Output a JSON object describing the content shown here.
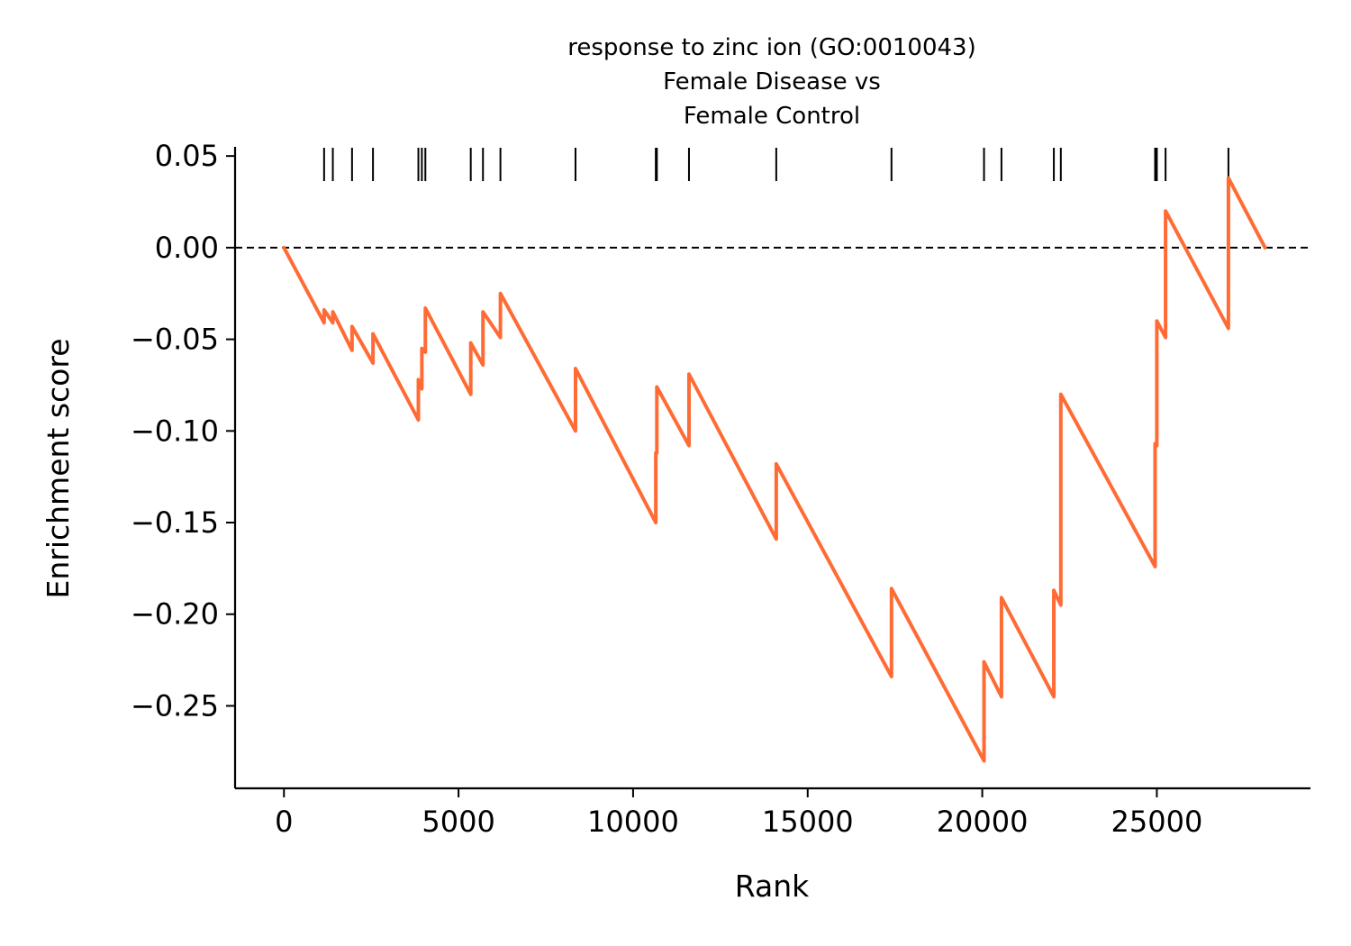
{
  "chart_data": {
    "type": "line",
    "title": "response to zinc ion (GO:0010043)",
    "subtitle_lines": [
      "Female Disease vs",
      "Female Control"
    ],
    "xlabel": "Rank",
    "ylabel": "Enrichment score",
    "xlim": [
      -1400,
      29400
    ],
    "ylim": [
      -0.295,
      0.055
    ],
    "x_ticks": [
      0,
      5000,
      10000,
      15000,
      20000,
      25000
    ],
    "x_tick_labels": [
      "0",
      "5000",
      "10000",
      "15000",
      "20000",
      "25000"
    ],
    "y_ticks": [
      0.05,
      0.0,
      -0.05,
      -0.1,
      -0.15,
      -0.2,
      -0.25
    ],
    "y_tick_labels": [
      "0.05",
      "0.00",
      "−0.05",
      "−0.10",
      "−0.15",
      "−0.20",
      "−0.25"
    ],
    "reference_line": {
      "y": 0.0,
      "style": "dashed",
      "color": "#000000"
    },
    "grid": false,
    "colors": {
      "line": "#ff6b35",
      "hits": "#000000"
    },
    "hit_ranks": [
      1150,
      1400,
      1950,
      2550,
      3850,
      3950,
      4050,
      5350,
      5700,
      6200,
      8350,
      10650,
      10680,
      11600,
      14100,
      17400,
      20050,
      20550,
      22050,
      22250,
      24950,
      25000,
      25250,
      27050
    ],
    "series": [
      {
        "values": [
          [
            0,
            0.0
          ],
          [
            1150,
            -0.041
          ],
          [
            1150,
            -0.034
          ],
          [
            1400,
            -0.041
          ],
          [
            1400,
            -0.035
          ],
          [
            1950,
            -0.056
          ],
          [
            1950,
            -0.043
          ],
          [
            2550,
            -0.063
          ],
          [
            2550,
            -0.047
          ],
          [
            3850,
            -0.094
          ],
          [
            3850,
            -0.072
          ],
          [
            3950,
            -0.077
          ],
          [
            3950,
            -0.055
          ],
          [
            4050,
            -0.057
          ],
          [
            4050,
            -0.033
          ],
          [
            5350,
            -0.08
          ],
          [
            5350,
            -0.052
          ],
          [
            5700,
            -0.064
          ],
          [
            5700,
            -0.035
          ],
          [
            6200,
            -0.049
          ],
          [
            6200,
            -0.025
          ],
          [
            8350,
            -0.1
          ],
          [
            8350,
            -0.066
          ],
          [
            10650,
            -0.15
          ],
          [
            10650,
            -0.112
          ],
          [
            10680,
            -0.112
          ],
          [
            10680,
            -0.076
          ],
          [
            11600,
            -0.108
          ],
          [
            11600,
            -0.069
          ],
          [
            14100,
            -0.159
          ],
          [
            14100,
            -0.118
          ],
          [
            17400,
            -0.234
          ],
          [
            17400,
            -0.186
          ],
          [
            20050,
            -0.28
          ],
          [
            20050,
            -0.226
          ],
          [
            20550,
            -0.245
          ],
          [
            20550,
            -0.191
          ],
          [
            22050,
            -0.245
          ],
          [
            22050,
            -0.187
          ],
          [
            22250,
            -0.195
          ],
          [
            22250,
            -0.08
          ],
          [
            24950,
            -0.174
          ],
          [
            24950,
            -0.107
          ],
          [
            25000,
            -0.108
          ],
          [
            25000,
            -0.04
          ],
          [
            25250,
            -0.049
          ],
          [
            25250,
            0.02
          ],
          [
            27050,
            -0.044
          ],
          [
            27050,
            0.038
          ],
          [
            28100,
            0.0
          ]
        ]
      }
    ]
  }
}
